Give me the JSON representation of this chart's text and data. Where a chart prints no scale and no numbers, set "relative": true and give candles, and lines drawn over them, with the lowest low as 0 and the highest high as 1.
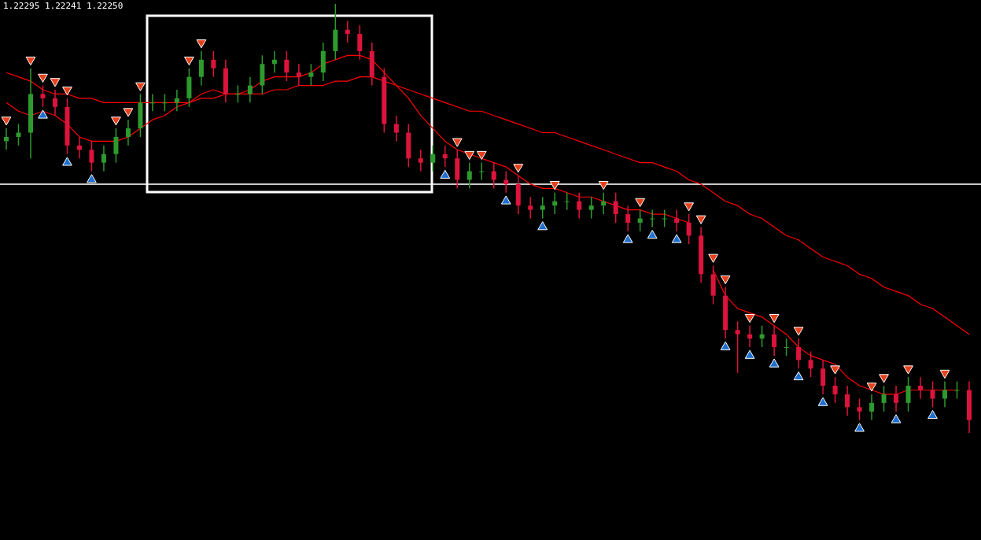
{
  "chart_data": {
    "type": "candlestick",
    "relative": true,
    "annotations": [
      "1.22295 1.22241 1.22250"
    ],
    "ref_lines": [
      {
        "axis": "y",
        "value": 0.58,
        "color": "#c8c8c8"
      }
    ],
    "categories": [
      null,
      null,
      null,
      null,
      null,
      null,
      null,
      null,
      null,
      null,
      null,
      null,
      null,
      null,
      null,
      null,
      null,
      null,
      null,
      null,
      null,
      null,
      null,
      null,
      null,
      null,
      null,
      null,
      null,
      null,
      null,
      null,
      null,
      null,
      null,
      null,
      null,
      null,
      null,
      null,
      null,
      null,
      null,
      null,
      null,
      null,
      null,
      null,
      null,
      null,
      null,
      null,
      null,
      null,
      null,
      null,
      null,
      null,
      null,
      null,
      null,
      null,
      null,
      null,
      null,
      null,
      null,
      null,
      null,
      null,
      null,
      null,
      null,
      null,
      null,
      null,
      null,
      null,
      null,
      null
    ],
    "ohlc": [
      [
        0.68,
        0.71,
        0.66,
        0.69
      ],
      [
        0.69,
        0.72,
        0.67,
        0.7
      ],
      [
        0.7,
        0.85,
        0.64,
        0.79
      ],
      [
        0.79,
        0.81,
        0.76,
        0.78
      ],
      [
        0.78,
        0.8,
        0.74,
        0.76
      ],
      [
        0.76,
        0.78,
        0.65,
        0.67
      ],
      [
        0.67,
        0.69,
        0.64,
        0.66
      ],
      [
        0.66,
        0.68,
        0.61,
        0.63
      ],
      [
        0.63,
        0.67,
        0.61,
        0.65
      ],
      [
        0.65,
        0.71,
        0.63,
        0.69
      ],
      [
        0.69,
        0.73,
        0.67,
        0.71
      ],
      [
        0.71,
        0.79,
        0.69,
        0.77
      ],
      [
        0.77,
        0.79,
        0.75,
        0.77
      ],
      [
        0.77,
        0.79,
        0.75,
        0.77
      ],
      [
        0.77,
        0.8,
        0.75,
        0.78
      ],
      [
        0.78,
        0.85,
        0.76,
        0.83
      ],
      [
        0.83,
        0.89,
        0.81,
        0.87
      ],
      [
        0.87,
        0.89,
        0.83,
        0.85
      ],
      [
        0.85,
        0.87,
        0.77,
        0.79
      ],
      [
        0.79,
        0.81,
        0.77,
        0.79
      ],
      [
        0.79,
        0.83,
        0.77,
        0.81
      ],
      [
        0.81,
        0.88,
        0.79,
        0.86
      ],
      [
        0.86,
        0.89,
        0.84,
        0.87
      ],
      [
        0.87,
        0.89,
        0.82,
        0.84
      ],
      [
        0.84,
        0.86,
        0.81,
        0.83
      ],
      [
        0.83,
        0.86,
        0.81,
        0.84
      ],
      [
        0.84,
        0.91,
        0.82,
        0.89
      ],
      [
        0.89,
        1.0,
        0.87,
        0.94
      ],
      [
        0.94,
        0.96,
        0.91,
        0.93
      ],
      [
        0.93,
        0.95,
        0.87,
        0.89
      ],
      [
        0.89,
        0.91,
        0.81,
        0.83
      ],
      [
        0.83,
        0.85,
        0.7,
        0.72
      ],
      [
        0.72,
        0.74,
        0.68,
        0.7
      ],
      [
        0.7,
        0.72,
        0.62,
        0.64
      ],
      [
        0.64,
        0.66,
        0.61,
        0.63
      ],
      [
        0.63,
        0.67,
        0.61,
        0.65
      ],
      [
        0.65,
        0.67,
        0.62,
        0.64
      ],
      [
        0.64,
        0.66,
        0.57,
        0.59
      ],
      [
        0.59,
        0.63,
        0.57,
        0.61
      ],
      [
        0.61,
        0.63,
        0.59,
        0.61
      ],
      [
        0.61,
        0.63,
        0.57,
        0.59
      ],
      [
        0.59,
        0.61,
        0.56,
        0.58
      ],
      [
        0.58,
        0.6,
        0.51,
        0.53
      ],
      [
        0.53,
        0.55,
        0.5,
        0.52
      ],
      [
        0.52,
        0.55,
        0.5,
        0.53
      ],
      [
        0.53,
        0.56,
        0.51,
        0.54
      ],
      [
        0.54,
        0.56,
        0.52,
        0.54
      ],
      [
        0.54,
        0.56,
        0.5,
        0.52
      ],
      [
        0.52,
        0.55,
        0.5,
        0.53
      ],
      [
        0.53,
        0.56,
        0.51,
        0.54
      ],
      [
        0.54,
        0.56,
        0.49,
        0.51
      ],
      [
        0.51,
        0.53,
        0.47,
        0.49
      ],
      [
        0.49,
        0.52,
        0.47,
        0.5
      ],
      [
        0.5,
        0.52,
        0.48,
        0.5
      ],
      [
        0.5,
        0.52,
        0.48,
        0.5
      ],
      [
        0.5,
        0.52,
        0.47,
        0.49
      ],
      [
        0.49,
        0.51,
        0.44,
        0.46
      ],
      [
        0.46,
        0.48,
        0.35,
        0.37
      ],
      [
        0.37,
        0.39,
        0.3,
        0.32
      ],
      [
        0.32,
        0.34,
        0.22,
        0.24
      ],
      [
        0.24,
        0.26,
        0.14,
        0.23
      ],
      [
        0.23,
        0.25,
        0.2,
        0.22
      ],
      [
        0.22,
        0.25,
        0.2,
        0.23
      ],
      [
        0.23,
        0.25,
        0.18,
        0.2
      ],
      [
        0.2,
        0.22,
        0.18,
        0.2
      ],
      [
        0.2,
        0.22,
        0.15,
        0.17
      ],
      [
        0.17,
        0.19,
        0.13,
        0.15
      ],
      [
        0.15,
        0.17,
        0.09,
        0.11
      ],
      [
        0.11,
        0.13,
        0.07,
        0.09
      ],
      [
        0.09,
        0.11,
        0.04,
        0.06
      ],
      [
        0.06,
        0.08,
        0.03,
        0.05
      ],
      [
        0.05,
        0.09,
        0.03,
        0.07
      ],
      [
        0.07,
        0.11,
        0.05,
        0.09
      ],
      [
        0.09,
        0.11,
        0.05,
        0.07
      ],
      [
        0.07,
        0.13,
        0.05,
        0.11
      ],
      [
        0.11,
        0.13,
        0.08,
        0.1
      ],
      [
        0.1,
        0.12,
        0.06,
        0.08
      ],
      [
        0.08,
        0.12,
        0.06,
        0.1
      ],
      [
        0.1,
        0.12,
        0.08,
        0.1
      ],
      [
        0.1,
        0.12,
        0.0,
        0.03
      ]
    ],
    "series": [
      {
        "type": "line",
        "color": "#ff0000",
        "values": [
          0.77,
          0.75,
          0.74,
          0.75,
          0.74,
          0.72,
          0.69,
          0.68,
          0.68,
          0.68,
          0.69,
          0.71,
          0.73,
          0.74,
          0.76,
          0.77,
          0.79,
          0.8,
          0.79,
          0.79,
          0.8,
          0.82,
          0.83,
          0.83,
          0.83,
          0.84,
          0.86,
          0.87,
          0.88,
          0.88,
          0.87,
          0.84,
          0.81,
          0.78,
          0.74,
          0.71,
          0.68,
          0.66,
          0.65,
          0.64,
          0.63,
          0.62,
          0.6,
          0.58,
          0.57,
          0.57,
          0.56,
          0.55,
          0.55,
          0.54,
          0.53,
          0.52,
          0.52,
          0.51,
          0.51,
          0.5,
          0.49,
          null,
          0.38,
          0.32,
          0.29,
          0.28,
          0.27,
          0.25,
          0.23,
          0.2,
          0.18,
          0.17,
          0.16,
          0.13,
          0.11,
          0.1,
          0.09,
          0.09,
          0.1,
          0.1,
          0.1,
          0.1,
          0.1,
          null
        ]
      },
      {
        "type": "line",
        "color": "#ff0000",
        "values": [
          0.84,
          0.83,
          0.82,
          0.8,
          0.79,
          0.79,
          0.78,
          0.78,
          0.77,
          0.77,
          0.77,
          0.77,
          0.77,
          0.77,
          0.77,
          0.77,
          0.78,
          0.78,
          0.79,
          0.79,
          0.79,
          0.79,
          0.8,
          0.8,
          0.81,
          0.81,
          0.81,
          0.82,
          0.82,
          0.83,
          0.83,
          0.82,
          0.81,
          0.8,
          0.79,
          0.78,
          0.77,
          0.76,
          0.75,
          0.75,
          0.74,
          0.73,
          0.72,
          0.71,
          0.7,
          0.7,
          0.69,
          0.68,
          0.67,
          0.66,
          0.65,
          0.64,
          0.63,
          0.63,
          0.62,
          0.61,
          0.59,
          0.58,
          0.56,
          0.54,
          0.53,
          0.51,
          0.5,
          0.48,
          0.46,
          0.45,
          0.43,
          0.41,
          0.4,
          0.39,
          0.37,
          0.36,
          0.34,
          0.33,
          0.32,
          0.3,
          0.29,
          0.27,
          0.25,
          0.23
        ]
      },
      {
        "type": "scatter",
        "marker": "triangle",
        "color": "#e8401c",
        "values": [
          0.73,
          null,
          0.87,
          0.83,
          0.82,
          0.8,
          null,
          null,
          null,
          0.73,
          0.75,
          0.81,
          null,
          null,
          null,
          0.87,
          0.91,
          null,
          null,
          null,
          null,
          null,
          null,
          null,
          null,
          null,
          null,
          null,
          null,
          null,
          null,
          null,
          null,
          null,
          null,
          null,
          null,
          0.68,
          0.65,
          0.65,
          null,
          null,
          0.62,
          null,
          null,
          0.58,
          null,
          null,
          null,
          0.58,
          null,
          null,
          0.54,
          null,
          null,
          null,
          0.53,
          0.5,
          0.41,
          0.36,
          null,
          0.27,
          null,
          0.27,
          null,
          0.24,
          null,
          null,
          0.15,
          null,
          null,
          0.11,
          0.13,
          null,
          0.15,
          null,
          null,
          0.14,
          null,
          null
        ]
      },
      {
        "type": "scatter",
        "marker": "triangle",
        "color": "#1e6fd0",
        "values": [
          null,
          null,
          null,
          0.74,
          null,
          0.63,
          null,
          0.59,
          null,
          null,
          null,
          null,
          null,
          null,
          null,
          null,
          null,
          null,
          null,
          null,
          null,
          null,
          null,
          null,
          null,
          null,
          null,
          null,
          null,
          null,
          null,
          null,
          null,
          null,
          null,
          null,
          0.6,
          null,
          null,
          null,
          null,
          0.54,
          null,
          null,
          0.48,
          null,
          null,
          null,
          null,
          null,
          null,
          0.45,
          null,
          0.46,
          null,
          0.45,
          null,
          null,
          null,
          0.2,
          null,
          0.18,
          null,
          0.16,
          null,
          0.13,
          null,
          0.07,
          null,
          null,
          0.01,
          null,
          null,
          0.03,
          null,
          null,
          0.04,
          null,
          null,
          null
        ]
      }
    ]
  }
}
